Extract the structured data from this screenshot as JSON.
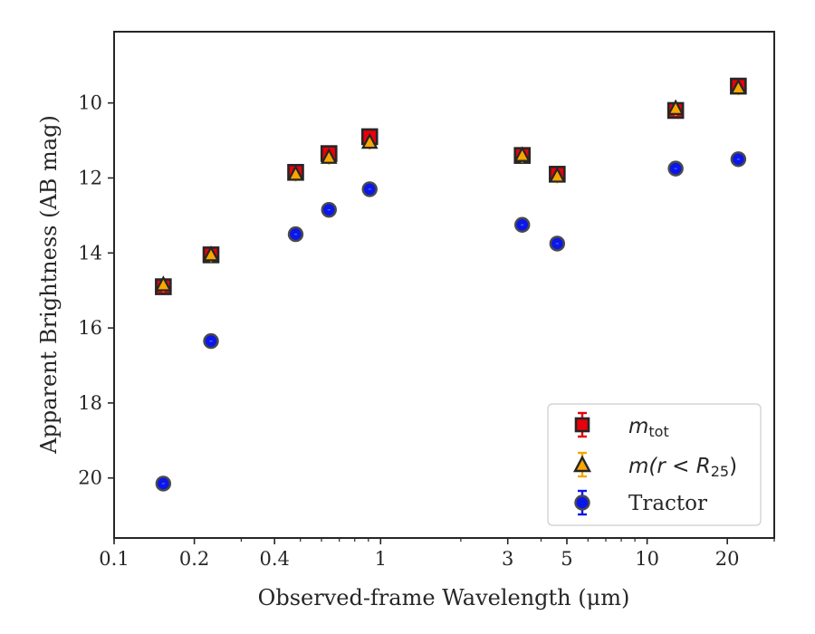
{
  "chart_data": {
    "type": "scatter",
    "title": "",
    "xlabel": "Observed-frame Wavelength (μm)",
    "ylabel": "Apparent Brightness (AB mag)",
    "xscale": "log",
    "xlim": [
      0.1,
      30
    ],
    "ylim": [
      21.6,
      8.1
    ],
    "y_inverted": true,
    "x_ticks": [
      0.1,
      0.2,
      0.4,
      1,
      3,
      5,
      10,
      20
    ],
    "x_tick_labels": [
      "0.1",
      "0.2",
      "0.4",
      "1",
      "3",
      "5",
      "10",
      "20"
    ],
    "y_ticks": [
      10,
      12,
      14,
      16,
      18,
      20
    ],
    "y_tick_labels": [
      "10",
      "12",
      "14",
      "16",
      "18",
      "20"
    ],
    "grid": false,
    "legend_position": "bottom-right",
    "series": [
      {
        "name": "m_tot",
        "legend_main": "m",
        "legend_sub": "tot",
        "marker": "square",
        "color": "#e8000b",
        "x": [
          0.153,
          0.231,
          0.48,
          0.64,
          0.91,
          3.4,
          4.6,
          12.8,
          22.0
        ],
        "y": [
          14.9,
          14.05,
          11.85,
          11.35,
          10.9,
          11.4,
          11.9,
          10.2,
          9.55
        ]
      },
      {
        "name": "m(r < R_25)",
        "legend_main": "m(r < R",
        "legend_sub": "25",
        "legend_close": ")",
        "marker": "triangle",
        "color": "#f6a700",
        "x": [
          0.153,
          0.231,
          0.48,
          0.64,
          0.91,
          3.4,
          4.6,
          12.8,
          22.0
        ],
        "y": [
          14.85,
          14.05,
          11.9,
          11.45,
          11.05,
          11.4,
          11.95,
          10.15,
          9.6
        ]
      },
      {
        "name": "Tractor",
        "marker": "circle",
        "color": "#0b17e8",
        "x": [
          0.153,
          0.231,
          0.48,
          0.64,
          0.91,
          3.4,
          4.6,
          12.8,
          22.0
        ],
        "y": [
          20.15,
          16.35,
          13.5,
          12.85,
          12.3,
          13.25,
          13.75,
          11.75,
          11.5
        ]
      }
    ]
  }
}
